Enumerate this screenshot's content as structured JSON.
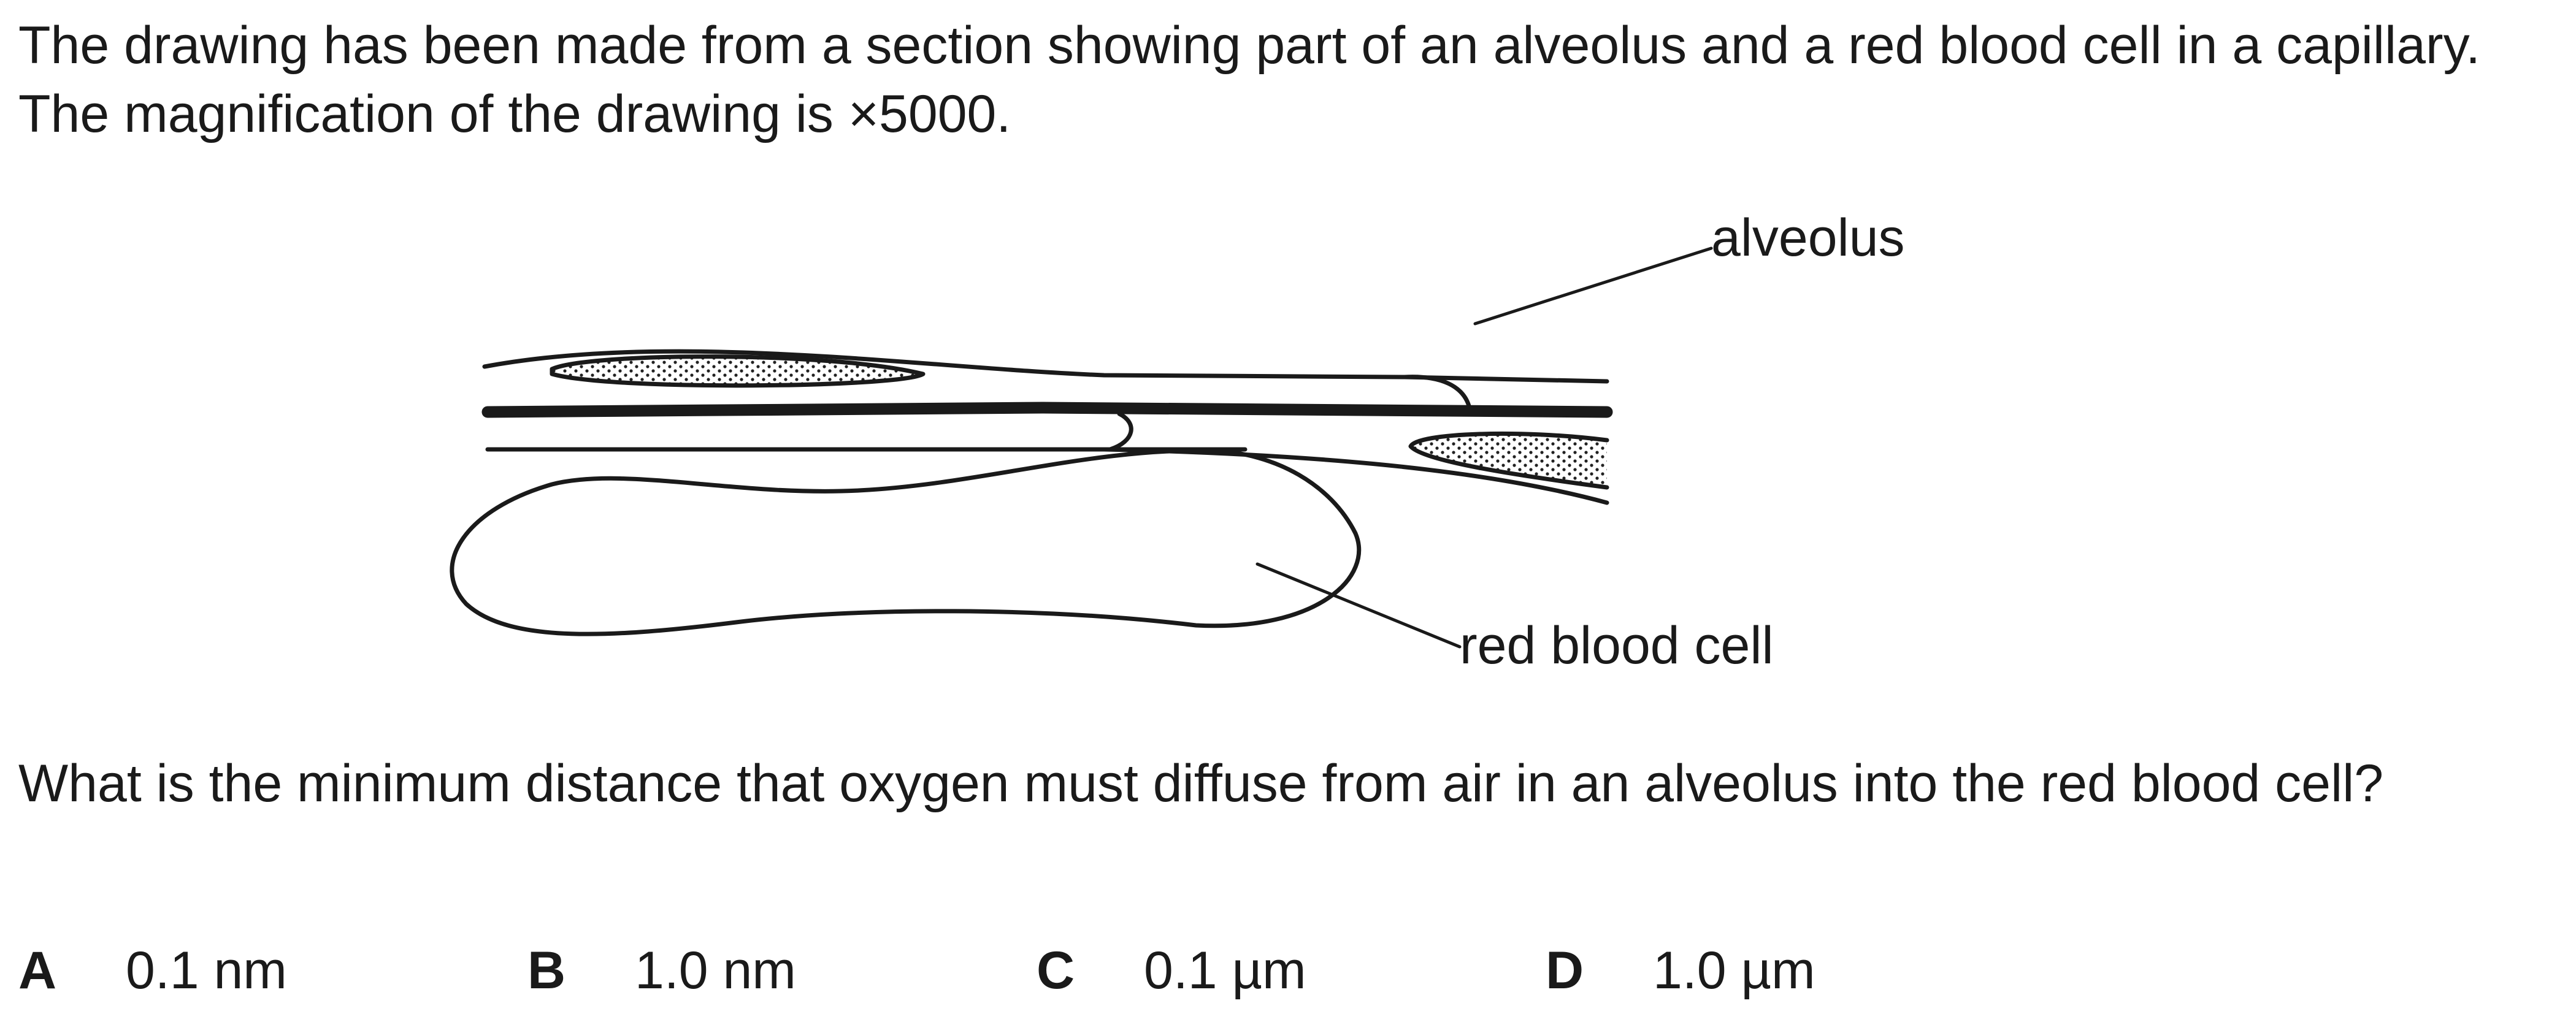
{
  "intro": {
    "text": "The drawing has been made from a section showing part of an alveolus and a red blood cell in a capillary. The magnification of the drawing is ×5000."
  },
  "figure": {
    "labels": {
      "alveolus": "alveolus",
      "red_blood_cell": "red blood cell"
    }
  },
  "question": {
    "text": "What is the minimum distance that oxygen must diffuse from air in an alveolus into the red blood cell?"
  },
  "options": [
    {
      "letter": "A",
      "value": "0.1 nm"
    },
    {
      "letter": "B",
      "value": "1.0 nm"
    },
    {
      "letter": "C",
      "value": "0.1 µm"
    },
    {
      "letter": "D",
      "value": "1.0 µm"
    }
  ]
}
